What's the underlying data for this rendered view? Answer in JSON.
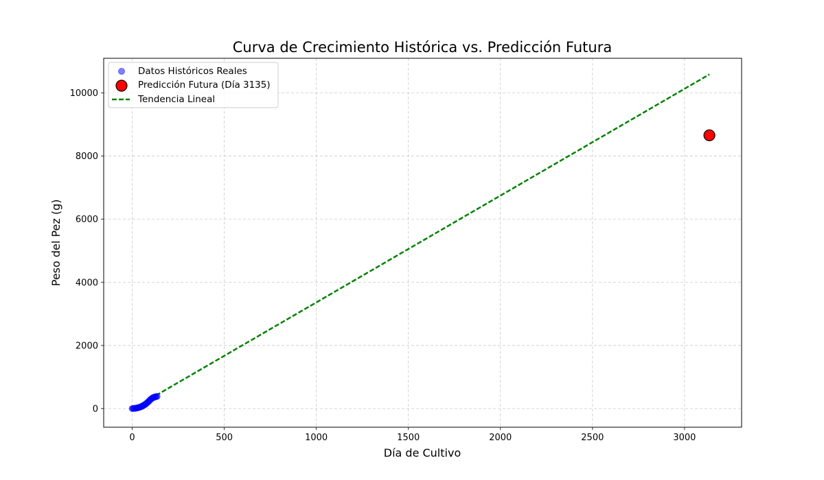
{
  "chart_data": {
    "type": "scatter",
    "title": "Curva de Crecimiento Histórica vs. Predicción Futura",
    "xlabel": "Día de Cultivo",
    "ylabel": "Peso del Pez (g)",
    "xlim": [
      -155,
      3310
    ],
    "ylim": [
      -590,
      11100
    ],
    "xticks": [
      0,
      500,
      1000,
      1500,
      2000,
      2500,
      3000
    ],
    "yticks": [
      0,
      2000,
      4000,
      6000,
      8000,
      10000
    ],
    "grid": true,
    "legend_position": "top-left",
    "series": [
      {
        "name": "Datos Históricos Reales",
        "kind": "scatter",
        "color": "#0000ff",
        "x": [
          0,
          5,
          10,
          15,
          20,
          25,
          30,
          35,
          40,
          45,
          50,
          55,
          60,
          65,
          70,
          75,
          80,
          85,
          90,
          95,
          100,
          105,
          110,
          115,
          120,
          125,
          130,
          135
        ],
        "y": [
          0,
          2,
          5,
          9,
          13,
          18,
          25,
          33,
          42,
          52,
          64,
          78,
          94,
          112,
          132,
          154,
          178,
          204,
          232,
          262,
          290,
          315,
          335,
          350,
          362,
          372,
          380,
          386
        ]
      },
      {
        "name": "Predicción Futura (Día 3135)",
        "kind": "point",
        "color": "#ff0000",
        "x": [
          3135
        ],
        "y": [
          8660
        ]
      },
      {
        "name": "Tendencia Lineal",
        "kind": "line",
        "color": "#008000",
        "x": [
          0,
          3135
        ],
        "y": [
          -20,
          10590
        ]
      }
    ]
  }
}
